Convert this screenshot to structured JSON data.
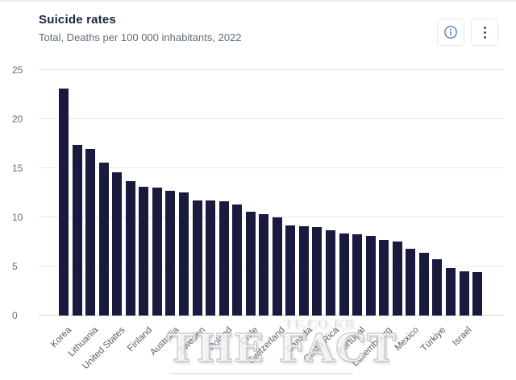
{
  "header": {
    "title": "Suicide rates",
    "subtitle": "Total, Deaths per 100 000 inhabitants, 2022",
    "icons": {
      "info": "circle-i",
      "menu": "vertical-ellipsis"
    }
  },
  "watermark": {
    "text": "THE FACT",
    "url": "TF.CO.KR"
  },
  "colors": {
    "bar": "#1a1a3f",
    "title": "#1b2540",
    "subtitle": "#5f6b7b",
    "axis_text": "#666b73",
    "gridline": "#e8e8eb",
    "info_icon": "#5b82ad",
    "menu_icon": "#3d5170"
  },
  "chart_data": {
    "type": "bar",
    "title": "Suicide rates",
    "subtitle": "Total, Deaths per 100 000 inhabitants, 2022",
    "ylabel": "Deaths per 100 000 inhabitants",
    "xlabel": "",
    "ylim": [
      0,
      25
    ],
    "yticks": [
      0,
      5,
      10,
      15,
      20,
      25
    ],
    "grid": true,
    "legend": false,
    "label_rotation": -45,
    "bar_color": "#1a1a3f",
    "categories": [
      "Korea",
      "",
      "Lithuania",
      "",
      "United States",
      "",
      "Finland",
      "",
      "Australia",
      "",
      "Sweden",
      "",
      "Poland",
      "",
      "Chile",
      "",
      "Switzerland",
      "",
      "Canada",
      "",
      "Costa Rica",
      "",
      "Portugal",
      "",
      "Luxembourg",
      "",
      "Mexico",
      "",
      "Türkiye",
      "",
      "Israel",
      ""
    ],
    "values": [
      23.1,
      17.4,
      17.0,
      15.6,
      14.6,
      13.7,
      13.1,
      13.0,
      12.7,
      12.5,
      11.7,
      11.7,
      11.6,
      11.3,
      10.6,
      10.3,
      10.0,
      9.2,
      9.1,
      9.0,
      8.7,
      8.4,
      8.3,
      8.1,
      7.7,
      7.5,
      6.8,
      6.4,
      5.7,
      4.8,
      4.5,
      4.4
    ]
  }
}
